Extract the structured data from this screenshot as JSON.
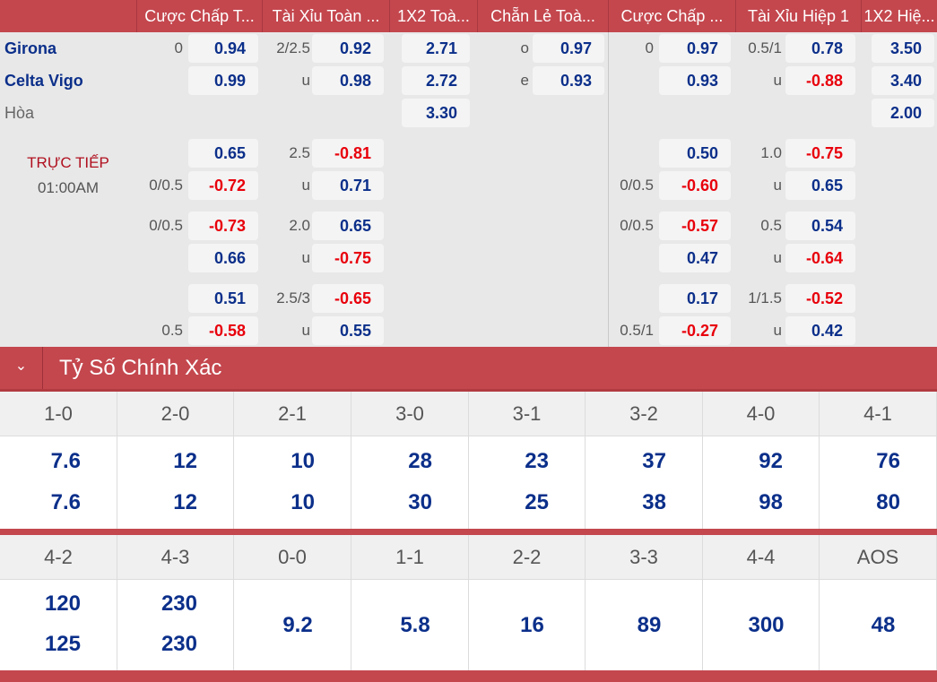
{
  "header": {
    "columns": [
      "Cược Chấp T...",
      "Tài Xỉu Toàn ...",
      "1X2 Toà...",
      "Chẵn Lẻ Toà...",
      "Cược Chấp ...",
      "Tài Xỉu Hiệp 1",
      "1X2 Hiệ..."
    ]
  },
  "teams": {
    "home": "Girona",
    "away": "Celta Vigo",
    "draw": "Hòa"
  },
  "live": {
    "status": "TRỰC TIẾP",
    "time": "01:00AM"
  },
  "colors": {
    "header_bg": "#c4474e",
    "positive_odds": "#0b2f8a",
    "negative_odds": "#e8000b"
  },
  "main_rows": [
    [
      [
        "0",
        "0.94"
      ],
      [
        "2/2.5",
        "0.92"
      ],
      [
        "",
        "2.71"
      ],
      [
        "o",
        "0.97"
      ],
      [
        "0",
        "0.97"
      ],
      [
        "0.5/1",
        "0.78"
      ],
      [
        "",
        "3.50"
      ]
    ],
    [
      [
        "",
        "0.99"
      ],
      [
        "u",
        "0.98"
      ],
      [
        "",
        "2.72"
      ],
      [
        "e",
        "0.93"
      ],
      [
        "",
        "0.93"
      ],
      [
        "u",
        "-0.88"
      ],
      [
        "",
        "3.40"
      ]
    ],
    [
      null,
      null,
      [
        "",
        "3.30"
      ],
      null,
      null,
      null,
      [
        "",
        "2.00"
      ]
    ]
  ],
  "live_rows": [
    [
      [
        "",
        "0.65"
      ],
      [
        "2.5",
        "-0.81"
      ],
      null,
      null,
      [
        "",
        "0.50"
      ],
      [
        "1.0",
        "-0.75"
      ],
      null
    ],
    [
      [
        "0/0.5",
        "-0.72"
      ],
      [
        "u",
        "0.71"
      ],
      null,
      null,
      [
        "0/0.5",
        "-0.60"
      ],
      [
        "u",
        "0.65"
      ],
      null
    ],
    [
      [
        "0/0.5",
        "-0.73"
      ],
      [
        "2.0",
        "0.65"
      ],
      null,
      null,
      [
        "0/0.5",
        "-0.57"
      ],
      [
        "0.5",
        "0.54"
      ],
      null
    ],
    [
      [
        "",
        "0.66"
      ],
      [
        "u",
        "-0.75"
      ],
      null,
      null,
      [
        "",
        "0.47"
      ],
      [
        "u",
        "-0.64"
      ],
      null
    ],
    [
      [
        "",
        "0.51"
      ],
      [
        "2.5/3",
        "-0.65"
      ],
      null,
      null,
      [
        "",
        "0.17"
      ],
      [
        "1/1.5",
        "-0.52"
      ],
      null
    ],
    [
      [
        "0.5",
        "-0.58"
      ],
      [
        "u",
        "0.55"
      ],
      null,
      null,
      [
        "0.5/1",
        "-0.27"
      ],
      [
        "u",
        "0.42"
      ],
      null
    ]
  ],
  "correct_score": {
    "title": "Tỷ Số Chính Xác",
    "icon": "chevron-down-icon",
    "block1": {
      "scores": [
        "1-0",
        "2-0",
        "2-1",
        "3-0",
        "3-1",
        "3-2",
        "4-0",
        "4-1"
      ],
      "home": [
        "7.6",
        "12",
        "10",
        "28",
        "23",
        "37",
        "92",
        "76"
      ],
      "away": [
        "7.6",
        "12",
        "10",
        "30",
        "25",
        "38",
        "98",
        "80"
      ]
    },
    "block2": {
      "scores": [
        "4-2",
        "4-3",
        "0-0",
        "1-1",
        "2-2",
        "3-3",
        "4-4",
        "AOS"
      ],
      "home": [
        "120",
        "230",
        "9.2",
        "5.8",
        "16",
        "89",
        "300",
        "48"
      ],
      "away": [
        "125",
        "230",
        null,
        null,
        null,
        null,
        null,
        null
      ]
    }
  }
}
